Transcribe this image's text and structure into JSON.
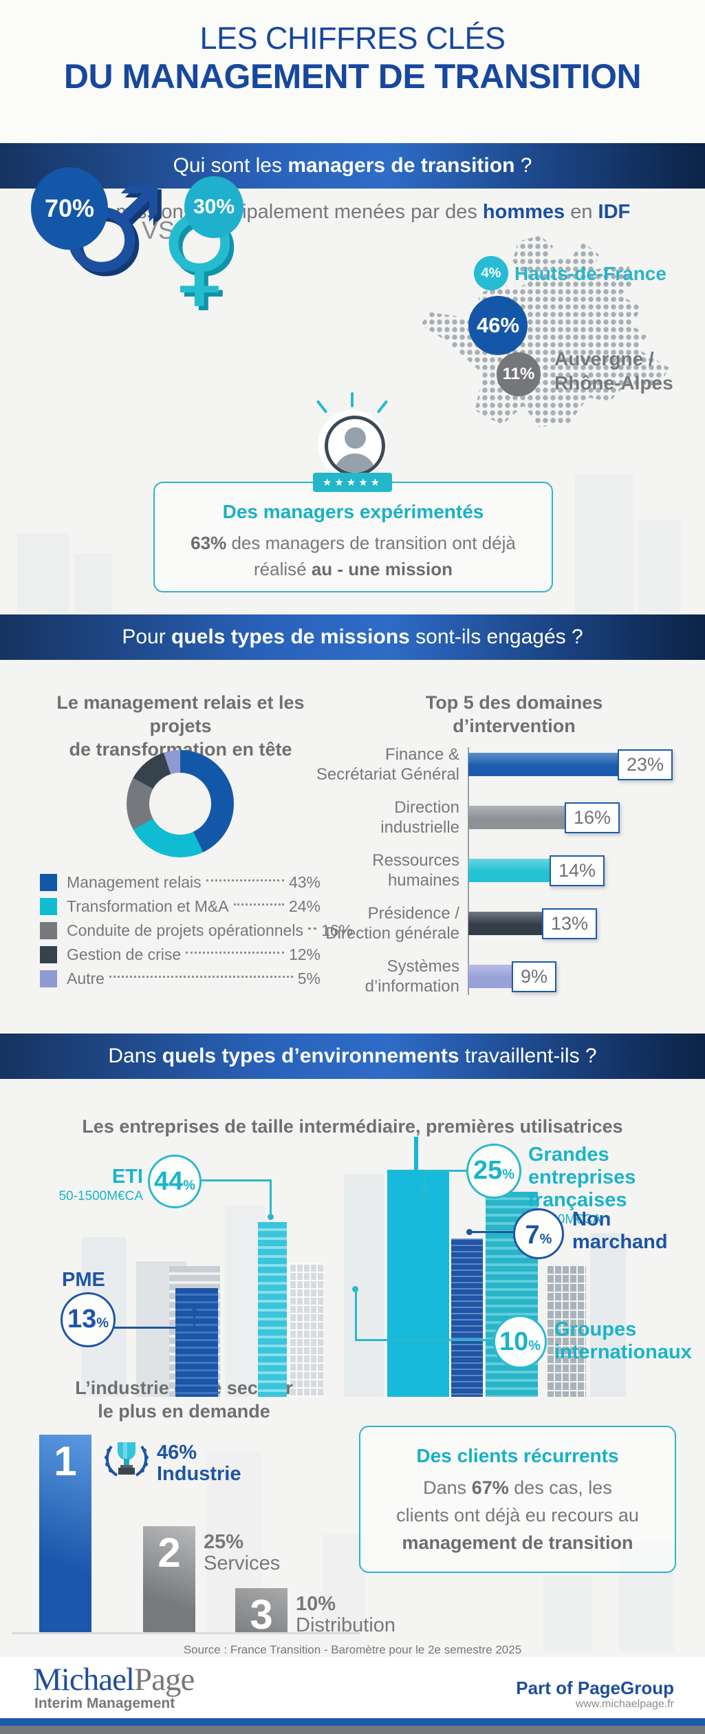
{
  "title": {
    "line1": "LES CHIFFRES CLÉS",
    "line2": "DU MANAGEMENT DE TRANSITION"
  },
  "band1": {
    "pre": "Qui sont les ",
    "bold": "managers de transition",
    "post": " ?"
  },
  "band2": {
    "pre": "Pour ",
    "bold": "quels types de missions",
    "post": " sont-ils engagés ?"
  },
  "band3": {
    "pre": "Dans ",
    "bold": "quels types d’environnements",
    "post": " travaillent-ils ?"
  },
  "who": {
    "heading": {
      "pre": "Des missions principalement menées par des ",
      "bold1": "hommes",
      "mid": " en ",
      "bold2": "IDF"
    },
    "male_pct": "70%",
    "vs": "VS",
    "female_pct": "30%",
    "male_symbol": "♂",
    "female_symbol": "♀",
    "map": {
      "hdf_pct": "4%",
      "hdf_label": "Hauts-de-France",
      "idf_pct": "46%",
      "ara_pct": "11%",
      "ara_label1": "Auvergne /",
      "ara_label2": "Rhône-Alpes"
    },
    "experienced": {
      "stars": "★★★★★",
      "title": "Des managers expérimentés",
      "l1_bold": "63%",
      "l1_rest": " des managers de transition ont déjà",
      "l2_pre": "réalisé ",
      "l2_bold": "au - une mission"
    }
  },
  "missions": {
    "left_title1": "Le management relais et les projets",
    "left_title2": "de transformation en tête",
    "right_title1": "Top 5 des domaines",
    "right_title2": "d’intervention",
    "legend": [
      {
        "label": "Management relais",
        "pct": "43%"
      },
      {
        "label": "Transformation et M&A",
        "pct": "24%"
      },
      {
        "label": "Conduite de projets opérationnels",
        "pct": "16%"
      },
      {
        "label": "Gestion de crise",
        "pct": "12%"
      },
      {
        "label": "Autre",
        "pct": "5%"
      }
    ],
    "bars": [
      {
        "label1": "Finance &",
        "label2": "Secrétariat Général",
        "pct": "23%"
      },
      {
        "label1": "Direction",
        "label2": "industrielle",
        "pct": "16%"
      },
      {
        "label1": "Ressources",
        "label2": "humaines",
        "pct": "14%"
      },
      {
        "label1": "Présidence /",
        "label2": "Direction générale",
        "pct": "13%"
      },
      {
        "label1": "Systèmes",
        "label2": "d’information",
        "pct": "9%"
      }
    ]
  },
  "env": {
    "heading": "Les entreprises de taille intermédiaire, premières utilisatrices",
    "pct_sign": "%",
    "eti": {
      "label": "ETI",
      "sub": "50-1500M€CA",
      "pct": "44"
    },
    "pme": {
      "label": "PME",
      "pct": "13"
    },
    "ge": {
      "pct": "25",
      "label1": "Grandes entreprises",
      "label2": "françaises",
      "sub": ">1500M€CA"
    },
    "nm": {
      "pct": "7",
      "label1": "Non",
      "label2": "marchand"
    },
    "gi": {
      "pct": "10",
      "label1": "Groupes",
      "label2": "internationaux"
    }
  },
  "industry": {
    "heading1": "L’industrie est le secteur",
    "heading2": "le plus en demande",
    "podium": [
      {
        "rank": "1",
        "pct": "46%",
        "label": "Industrie"
      },
      {
        "rank": "2",
        "pct": "25%",
        "label": "Services"
      },
      {
        "rank": "3",
        "pct": "10%",
        "label": "Distribution"
      }
    ],
    "clients": {
      "title": "Des clients récurrents",
      "l1_pre": "Dans ",
      "l1_bold": "67%",
      "l1_post": " des cas, les",
      "l2": "clients ont déjà eu recours au",
      "l3_bold": "management de transition"
    }
  },
  "source": "Source : France Transition - Baromètre pour le 2e semestre 2025",
  "footer": {
    "logo1": "Michael",
    "logo2": "Page",
    "sub": "Interim Management",
    "right1": "Part of PageGroup",
    "right2": "www.michaelpage.fr"
  },
  "chart_data": [
    {
      "type": "pie",
      "title": "Le management relais et les projets de transformation en tête",
      "labels": [
        "Management relais",
        "Transformation et M&A",
        "Conduite de projets opérationnels",
        "Gestion de crise",
        "Autre"
      ],
      "values": [
        43,
        24,
        16,
        12,
        5
      ],
      "colors": [
        "#1358a8",
        "#10bcd2",
        "#75797d",
        "#36424c",
        "#8f9ad2"
      ],
      "hole": 0.58,
      "start_angle_deg": 0,
      "direction": "clockwise",
      "legend_position": "bottom"
    },
    {
      "type": "bar",
      "orientation": "horizontal",
      "title": "Top 5 des domaines d’intervention",
      "categories": [
        "Finance & Secrétariat Général",
        "Direction industrielle",
        "Ressources humaines",
        "Présidence / Direction générale",
        "Systèmes d’information"
      ],
      "values": [
        23,
        16,
        14,
        13,
        9
      ],
      "unit": "%",
      "xlim": [
        0,
        25
      ],
      "colors": [
        "#1b5cae",
        "#8d9196",
        "#25c2d4",
        "#333e48",
        "#98a2d8"
      ]
    }
  ]
}
